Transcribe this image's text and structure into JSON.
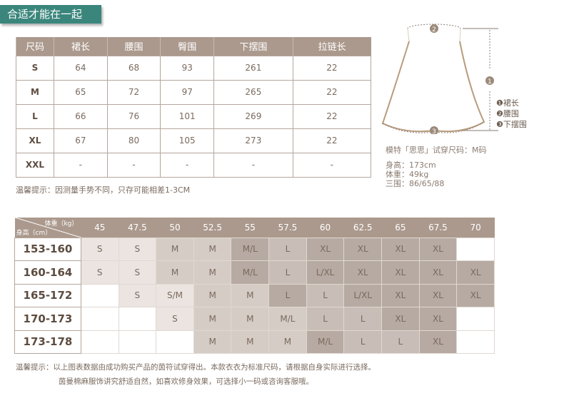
{
  "banner": "合适才能在一起",
  "size_table": {
    "headers": [
      "尺码",
      "裙长",
      "腰围",
      "臀围",
      "下摆围",
      "拉链长"
    ],
    "rows": [
      [
        "S",
        "64",
        "68",
        "93",
        "261",
        "22"
      ],
      [
        "M",
        "65",
        "72",
        "97",
        "265",
        "22"
      ],
      [
        "L",
        "66",
        "76",
        "101",
        "269",
        "22"
      ],
      [
        "XL",
        "67",
        "80",
        "105",
        "273",
        "22"
      ],
      [
        "XXL",
        "-",
        "-",
        "-",
        "-",
        "-"
      ]
    ]
  },
  "note1": "温馨提示：因测量手势不同，只存可能相差1-3CM",
  "diagram": {
    "markers": [
      "1",
      "2",
      "3"
    ],
    "legend": [
      "❶裙长",
      "❷腰围",
      "❸下摆围"
    ]
  },
  "model": {
    "title": "模特「思思」试穿尺码：M码",
    "height": "身高：173cm",
    "weight": "体重：49kg",
    "measurements": "三围：86/65/88"
  },
  "fit_table": {
    "corner_top": "体重（kg）",
    "corner_bottom": "身高（cm）",
    "weights": [
      "45",
      "47.5",
      "50",
      "52.5",
      "55",
      "57.5",
      "60",
      "62.5",
      "65",
      "67.5",
      "70"
    ],
    "rows": [
      {
        "height": "153-160",
        "cells": [
          "S",
          "S",
          "M",
          "M",
          "M/L",
          "L",
          "XL",
          "XL",
          "XL",
          "XL",
          ""
        ],
        "shade": [
          1,
          1,
          2,
          2,
          4,
          3,
          4,
          4,
          4,
          4,
          0
        ]
      },
      {
        "height": "160-164",
        "cells": [
          "S",
          "S",
          "M",
          "M",
          "M/L",
          "L",
          "L/XL",
          "XL",
          "XL",
          "XL",
          "XL"
        ],
        "shade": [
          1,
          1,
          2,
          2,
          4,
          3,
          4,
          4,
          4,
          4,
          4
        ]
      },
      {
        "height": "165-172",
        "cells": [
          "",
          "S",
          "S/M",
          "M",
          "M",
          "L",
          "L",
          "L/XL",
          "XL",
          "XL",
          "XL"
        ],
        "shade": [
          0,
          1,
          1,
          2,
          2,
          4,
          3,
          4,
          4,
          4,
          4
        ]
      },
      {
        "height": "170-173",
        "cells": [
          "",
          "",
          "S",
          "M",
          "M",
          "M/L",
          "L",
          "L",
          "XL",
          "XL",
          ""
        ],
        "shade": [
          0,
          0,
          1,
          2,
          2,
          2,
          3,
          3,
          4,
          4,
          0
        ]
      },
      {
        "height": "173-178",
        "cells": [
          "",
          "",
          "",
          "M",
          "M",
          "M",
          "M/L",
          "L",
          "L",
          "XL",
          ""
        ],
        "shade": [
          0,
          0,
          0,
          2,
          2,
          2,
          4,
          3,
          3,
          4,
          0
        ]
      }
    ]
  },
  "note2": [
    "温馨提示：以上图表数据由成功购买产品的茵符试穿得出。本款衣衣为标准尺码，请根据自身实际进行选择。",
    "茵曼棉麻服饰讲究舒适自然，如喜欢修身效果，可选择小一码或咨询客服哦。"
  ],
  "colors": {
    "banner": "#3b867c",
    "header": "#ab998d",
    "shade1": "#ebe4e0",
    "shade2": "#d6ccc6",
    "shade3": "#c9beb7",
    "shade4": "#b6aaa2"
  }
}
